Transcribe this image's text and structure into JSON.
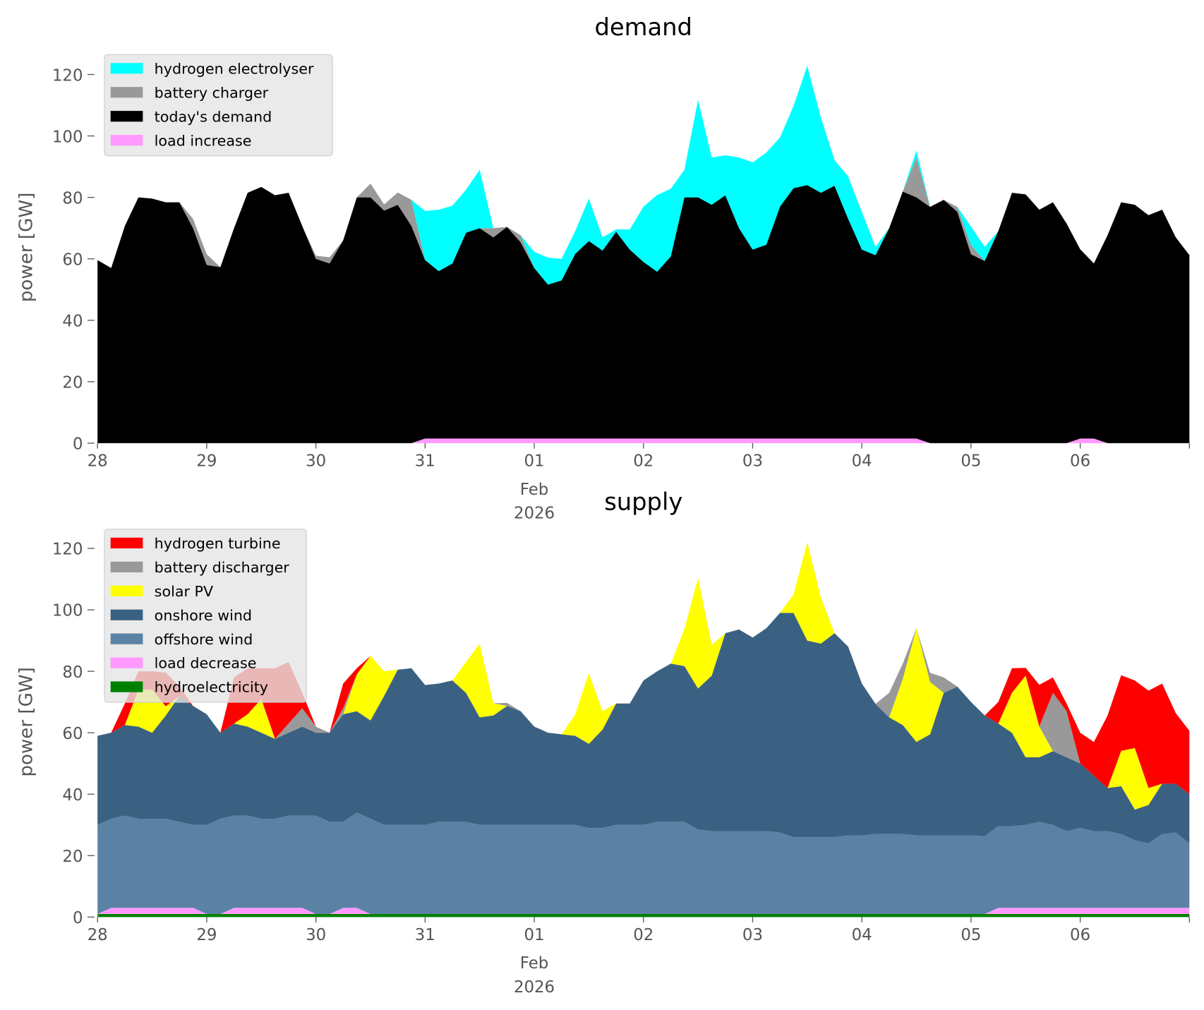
{
  "chart_data": [
    {
      "type": "area",
      "stacked": true,
      "title": "demand",
      "ylabel": "power [GW]",
      "xlabel": "",
      "ylim": [
        0,
        125
      ],
      "yticks": [
        0,
        20,
        40,
        60,
        80,
        100,
        120
      ],
      "x_start": "2026-01-28 00:00",
      "x_step_hours": 3,
      "xlim_hours": [
        0,
        240
      ],
      "xticks": [
        "28",
        "29",
        "30",
        "31",
        "01",
        "02",
        "03",
        "04",
        "05",
        "06"
      ],
      "xtick_sublabel": {
        "tick": "01",
        "lines": [
          "Feb",
          "2026"
        ]
      },
      "grid": false,
      "legend_position": "top-left",
      "series": [
        {
          "name": "load increase",
          "color": "#ff99ff",
          "values": [
            0,
            0,
            0,
            0,
            0,
            0,
            0,
            0,
            0,
            0,
            0,
            0,
            0,
            0,
            0,
            0,
            0,
            0,
            0,
            0,
            0,
            0,
            0,
            0,
            1.5,
            1.5,
            1.5,
            1.5,
            1.5,
            1.5,
            1.5,
            1.5,
            1.5,
            1.5,
            1.5,
            1.5,
            1.5,
            1.5,
            1.5,
            1.5,
            1.5,
            1.5,
            1.5,
            1.5,
            1.5,
            1.5,
            1.5,
            1.5,
            1.5,
            1.5,
            1.5,
            1.5,
            1.5,
            1.5,
            1.5,
            1.5,
            1.5,
            1.5,
            1.5,
            1.5,
            1.5,
            0,
            0,
            0,
            0,
            0,
            0,
            0,
            0,
            0,
            0,
            0,
            1.5,
            1.5,
            0,
            0,
            0,
            0,
            0,
            0,
            0
          ]
        },
        {
          "name": "today's demand",
          "color": "#000000",
          "values": [
            59.6,
            57,
            70.7,
            80,
            79.6,
            78.4,
            78.4,
            70,
            58,
            57.3,
            70,
            81.5,
            83.4,
            80.7,
            81.5,
            70.7,
            60,
            58.5,
            66,
            80,
            80,
            75.7,
            77.6,
            70.7,
            58.1,
            54.5,
            57,
            67,
            68.5,
            65.5,
            68.9,
            63.9,
            55.5,
            50.1,
            51.5,
            60.1,
            64.3,
            61.2,
            67.3,
            61.5,
            57.5,
            54.3,
            59.3,
            78.5,
            78.5,
            76.1,
            79.2,
            68.5,
            61.5,
            63.1,
            75.5,
            81.5,
            82.5,
            80,
            82.3,
            71.5,
            61.5,
            59.7,
            68.5,
            80.4,
            78.5,
            76.9,
            79.2,
            75.3,
            61.5,
            59.3,
            69,
            81.5,
            81,
            76,
            78.4,
            71.5,
            61.6,
            57,
            67.7,
            78.4,
            77.6,
            74.2,
            76,
            67,
            61.2
          ]
        },
        {
          "name": "battery charger",
          "color": "#999999",
          "values": [
            0,
            0,
            0,
            0,
            0,
            0,
            0,
            3,
            3.5,
            0,
            0,
            0,
            0,
            0,
            0,
            0,
            1,
            2,
            0,
            0,
            4.5,
            2,
            4,
            8.5,
            0,
            0,
            0,
            0,
            0,
            3,
            0,
            2.3,
            0,
            0,
            0,
            0,
            0,
            0,
            0,
            0,
            0,
            0,
            0,
            0,
            0,
            0,
            0,
            0,
            0,
            0,
            0,
            0,
            0,
            0,
            0,
            0,
            0,
            0,
            0,
            0,
            13,
            0,
            0,
            1.6,
            3,
            0,
            0,
            0,
            0,
            0,
            0,
            0,
            0,
            0,
            0,
            0,
            0,
            0,
            0,
            0,
            0
          ]
        },
        {
          "name": "hydrogen electrolyser",
          "color": "#00ffff",
          "values": [
            0,
            0,
            0,
            0,
            0,
            0,
            0,
            0,
            0,
            0,
            0,
            0,
            0,
            0,
            0,
            0,
            0,
            0,
            0,
            0,
            0,
            0,
            0,
            0,
            16,
            20,
            18.8,
            14,
            19,
            0,
            0,
            0,
            5.3,
            8.8,
            7,
            7.4,
            13.8,
            4.3,
            0.8,
            6.6,
            18,
            25,
            22,
            9,
            31.7,
            15.4,
            13,
            23,
            28.4,
            30,
            22.5,
            26.8,
            38.8,
            24.5,
            8.4,
            13.8,
            12.3,
            2.7,
            0,
            0,
            2.3,
            0,
            0,
            0,
            6,
            4.6,
            0,
            0,
            0,
            0,
            0,
            0,
            0,
            0,
            0,
            0,
            0,
            0,
            0,
            0,
            0
          ]
        }
      ],
      "legend": [
        "hydrogen electrolyser",
        "battery charger",
        "today's demand",
        "load increase"
      ]
    },
    {
      "type": "area",
      "stacked": true,
      "title": "supply",
      "ylabel": "power [GW]",
      "xlabel": "",
      "ylim": [
        0,
        125
      ],
      "yticks": [
        0,
        20,
        40,
        60,
        80,
        100,
        120
      ],
      "x_start": "2026-01-28 00:00",
      "x_step_hours": 3,
      "xlim_hours": [
        0,
        240
      ],
      "xticks": [
        "28",
        "29",
        "30",
        "31",
        "01",
        "02",
        "03",
        "04",
        "05",
        "06"
      ],
      "xtick_sublabel": {
        "tick": "01",
        "lines": [
          "Feb",
          "2026"
        ]
      },
      "grid": false,
      "legend_position": "top-left",
      "series": [
        {
          "name": "hydroelectricity",
          "color": "#008000",
          "values": [
            1,
            1,
            1,
            1,
            1,
            1,
            1,
            1,
            1,
            1,
            1,
            1,
            1,
            1,
            1,
            1,
            1,
            1,
            1,
            1,
            1,
            1,
            1,
            1,
            1,
            1,
            1,
            1,
            1,
            1,
            1,
            1,
            1,
            1,
            1,
            1,
            1,
            1,
            1,
            1,
            1,
            1,
            1,
            1,
            1,
            1,
            1,
            1,
            1,
            1,
            1,
            1,
            1,
            1,
            1,
            1,
            1,
            1,
            1,
            1,
            1,
            1,
            1,
            1,
            1,
            1,
            1,
            1,
            1,
            1,
            1,
            1,
            1,
            1,
            1,
            1,
            1,
            1,
            1,
            1,
            1
          ]
        },
        {
          "name": "load decrease",
          "color": "#ff99ff",
          "values": [
            0,
            2,
            2,
            2,
            2,
            2,
            2,
            2,
            0,
            0,
            2,
            2,
            2,
            2,
            2,
            2,
            0,
            0,
            2,
            2,
            0,
            0,
            0,
            0,
            0,
            0,
            0,
            0,
            0,
            0,
            0,
            0,
            0,
            0,
            0,
            0,
            0,
            0,
            0,
            0,
            0,
            0,
            0,
            0,
            0,
            0,
            0,
            0,
            0,
            0,
            0,
            0,
            0,
            0,
            0,
            0,
            0,
            0,
            0,
            0,
            0,
            0,
            0,
            0,
            0,
            0,
            2,
            2,
            2,
            2,
            2,
            2,
            2,
            2,
            2,
            2,
            2,
            2,
            2,
            2,
            2
          ]
        },
        {
          "name": "offshore wind",
          "color": "#5b82a4",
          "values": [
            29,
            29,
            30,
            29,
            29,
            29,
            28,
            27,
            29,
            31,
            30,
            30,
            29,
            29,
            30,
            30,
            32,
            30,
            28,
            31,
            31,
            29,
            29,
            29,
            29,
            30,
            30,
            30,
            29,
            29,
            29,
            29,
            29,
            29,
            29,
            29,
            28,
            28,
            29,
            29,
            29,
            30,
            30,
            30,
            27.5,
            27,
            27,
            27,
            27,
            27,
            26.5,
            25,
            25,
            25,
            25,
            25.6,
            25.6,
            26,
            26,
            26,
            25.6,
            25.6,
            25.6,
            25.6,
            25.6,
            25.3,
            26.6,
            26.6,
            27,
            28,
            27,
            25,
            26,
            25,
            25,
            24,
            22,
            21,
            24,
            24.5,
            21
          ]
        },
        {
          "name": "onshore wind",
          "color": "#3b6182",
          "values": [
            29,
            28,
            29.5,
            30,
            28,
            33.6,
            41,
            38.7,
            36,
            28,
            30,
            29,
            28,
            26,
            27,
            29,
            27,
            29,
            35,
            33,
            32,
            42,
            50.5,
            51,
            45.5,
            45,
            46,
            42,
            35,
            35.6,
            38.7,
            37,
            32,
            30,
            29.5,
            29,
            27.4,
            32,
            39.5,
            39.5,
            47,
            49,
            51.5,
            50.7,
            45.9,
            50.6,
            64.4,
            65.6,
            63,
            66,
            71.5,
            73,
            64,
            63,
            66.4,
            61.4,
            49.4,
            42.4,
            38,
            35.5,
            30.4,
            32.9,
            46.4,
            48.4,
            43.4,
            39.3,
            33.4,
            30.4,
            22,
            21,
            24,
            24,
            21,
            18,
            14,
            15.6,
            10,
            12.5,
            16.4,
            15.9,
            16
          ]
        },
        {
          "name": "solar PV",
          "color": "#ffff00",
          "values": [
            0,
            0,
            0,
            12,
            14,
            3,
            0,
            0,
            0,
            0,
            0,
            4,
            11,
            0,
            0,
            0,
            0,
            0,
            0,
            12,
            21,
            8,
            0,
            0,
            0,
            0,
            0,
            10,
            24,
            4,
            0,
            0,
            0,
            0,
            0,
            7,
            23,
            6,
            0,
            0,
            0,
            0,
            0,
            12,
            36,
            10,
            0,
            0,
            0,
            0,
            0,
            6,
            32,
            15,
            0,
            0,
            0,
            0,
            0,
            15,
            37,
            17,
            0,
            0,
            0,
            0,
            0,
            13,
            26.6,
            10,
            0,
            0,
            0,
            0,
            0,
            11.5,
            20,
            5.5,
            0,
            0,
            0
          ]
        },
        {
          "name": "battery discharger",
          "color": "#999999",
          "values": [
            0,
            0,
            0,
            0,
            0,
            0,
            0,
            0,
            0,
            0,
            0,
            0,
            0,
            0,
            3,
            6,
            2,
            0,
            2,
            0,
            0,
            0,
            0,
            0,
            0,
            0,
            0,
            0,
            0,
            0,
            1,
            0,
            0,
            0,
            0,
            0,
            0,
            0,
            0,
            0,
            0,
            0,
            0,
            0,
            0,
            0,
            0,
            0,
            0,
            0,
            0,
            0,
            0,
            0,
            0,
            0,
            0,
            0,
            8,
            5,
            0,
            3,
            5,
            0,
            0,
            0,
            0,
            0,
            0,
            0,
            19,
            15,
            0,
            0,
            0,
            0,
            0,
            0,
            0,
            0,
            0
          ]
        },
        {
          "name": "hydrogen turbine",
          "color": "#ff0000",
          "values": [
            0,
            0,
            7,
            6,
            6,
            11,
            3,
            0,
            0,
            0,
            15,
            15,
            10,
            23,
            20,
            5,
            0,
            0,
            8,
            2,
            0,
            0,
            0,
            0,
            0,
            0,
            0,
            0,
            0,
            0,
            0,
            0,
            0,
            0,
            0,
            0,
            0,
            0,
            0,
            0,
            0,
            0,
            0,
            0,
            0,
            0,
            0,
            0,
            0,
            0,
            0,
            0,
            0,
            0,
            0,
            0,
            0,
            0,
            0,
            0,
            0,
            0,
            0,
            0,
            0,
            0,
            7,
            8,
            2.5,
            13.6,
            5,
            2.5,
            10,
            11,
            23.6,
            24.6,
            22,
            31.7,
            32.6,
            23,
            20.6
          ]
        }
      ],
      "legend": [
        "hydrogen turbine",
        "battery discharger",
        "solar PV",
        "onshore wind",
        "offshore wind",
        "load decrease",
        "hydroelectricity"
      ]
    }
  ]
}
